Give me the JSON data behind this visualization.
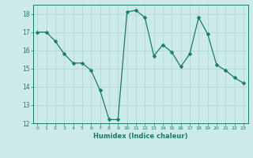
{
  "x": [
    0,
    1,
    2,
    3,
    4,
    5,
    6,
    7,
    8,
    9,
    10,
    11,
    12,
    13,
    14,
    15,
    16,
    17,
    18,
    19,
    20,
    21,
    22,
    23
  ],
  "y": [
    17.0,
    17.0,
    16.5,
    15.8,
    15.3,
    15.3,
    14.9,
    13.8,
    12.2,
    12.2,
    18.1,
    18.2,
    17.8,
    15.7,
    16.3,
    15.9,
    15.1,
    15.8,
    17.8,
    16.9,
    15.2,
    14.9,
    14.5,
    14.2
  ],
  "line_color": "#1a7a6e",
  "marker": "D",
  "marker_size": 2.5,
  "bg_color": "#cceae7",
  "grid_color": "#aed4d0",
  "xlabel": "Humidex (Indice chaleur)",
  "ylim": [
    12,
    18.5
  ],
  "xlim": [
    -0.5,
    23.5
  ],
  "yticks": [
    12,
    13,
    14,
    15,
    16,
    17,
    18
  ],
  "xticks": [
    0,
    1,
    2,
    3,
    4,
    5,
    6,
    7,
    8,
    9,
    10,
    11,
    12,
    13,
    14,
    15,
    16,
    17,
    18,
    19,
    20,
    21,
    22,
    23
  ]
}
